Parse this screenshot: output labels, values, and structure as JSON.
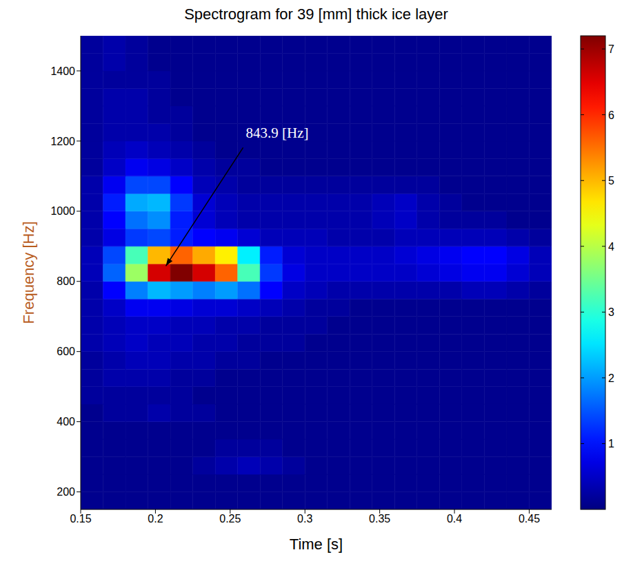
{
  "chart_data": {
    "type": "heatmap",
    "title": "Spectrogram for 39 [mm] thick ice layer",
    "x_label": "Time  [s]",
    "y_label": "Frequency  [Hz]",
    "xlim": [
      0.15,
      0.465
    ],
    "xticks": [
      0.15,
      0.2,
      0.25,
      0.3,
      0.35,
      0.4,
      0.45
    ],
    "ylim": [
      150,
      1500
    ],
    "yticks": [
      200,
      400,
      600,
      800,
      1000,
      1200,
      1400
    ],
    "heatmap": {
      "x_edges": [
        0.15,
        0.165,
        0.18,
        0.195,
        0.21,
        0.225,
        0.24,
        0.255,
        0.27,
        0.285,
        0.3,
        0.315,
        0.33,
        0.345,
        0.36,
        0.375,
        0.39,
        0.405,
        0.42,
        0.435,
        0.45,
        0.465
      ],
      "y_edges": [
        150,
        200,
        250,
        300,
        350,
        400,
        450,
        500,
        550,
        600,
        650,
        700,
        750,
        800,
        850,
        900,
        950,
        1000,
        1050,
        1100,
        1150,
        1200,
        1250,
        1300,
        1350,
        1400,
        1450,
        1500
      ],
      "cells": [
        [
          0.1,
          0.1,
          0.1,
          0.1,
          0.1,
          0.1,
          0.1,
          0.1,
          0.1,
          0.1,
          0.1,
          0.1,
          0.1,
          0.1,
          0.1,
          0.1,
          0.1,
          0.1,
          0.1,
          0.1,
          0.1
        ],
        [
          0.1,
          0.1,
          0.1,
          0.1,
          0.1,
          0.1,
          0.1,
          0.1,
          0.1,
          0.1,
          0.1,
          0.1,
          0.1,
          0.1,
          0.1,
          0.1,
          0.1,
          0.1,
          0.1,
          0.1,
          0.1
        ],
        [
          0.1,
          0.1,
          0.1,
          0.1,
          0.1,
          0.2,
          0.3,
          0.4,
          0.3,
          0.2,
          0.1,
          0.1,
          0.1,
          0.1,
          0.1,
          0.1,
          0.1,
          0.1,
          0.1,
          0.1,
          0.1
        ],
        [
          0.1,
          0.1,
          0.1,
          0.1,
          0.1,
          0.1,
          0.2,
          0.2,
          0.2,
          0.1,
          0.1,
          0.1,
          0.1,
          0.1,
          0.1,
          0.1,
          0.1,
          0.1,
          0.1,
          0.1,
          0.1
        ],
        [
          0.1,
          0.1,
          0.1,
          0.1,
          0.1,
          0.1,
          0.1,
          0.1,
          0.1,
          0.1,
          0.1,
          0.1,
          0.1,
          0.1,
          0.1,
          0.1,
          0.1,
          0.1,
          0.1,
          0.1,
          0.1
        ],
        [
          0.1,
          0.2,
          0.2,
          0.3,
          0.2,
          0.2,
          0.1,
          0.1,
          0.1,
          0.1,
          0.1,
          0.1,
          0.1,
          0.1,
          0.1,
          0.1,
          0.1,
          0.1,
          0.1,
          0.1,
          0.1
        ],
        [
          0.2,
          0.2,
          0.2,
          0.2,
          0.2,
          0.1,
          0.1,
          0.1,
          0.1,
          0.1,
          0.1,
          0.1,
          0.1,
          0.1,
          0.1,
          0.1,
          0.1,
          0.1,
          0.1,
          0.1,
          0.1
        ],
        [
          0.2,
          0.3,
          0.3,
          0.3,
          0.2,
          0.2,
          0.1,
          0.1,
          0.1,
          0.1,
          0.1,
          0.1,
          0.1,
          0.1,
          0.1,
          0.1,
          0.1,
          0.1,
          0.1,
          0.1,
          0.1
        ],
        [
          0.2,
          0.3,
          0.4,
          0.4,
          0.3,
          0.3,
          0.2,
          0.2,
          0.1,
          0.1,
          0.1,
          0.1,
          0.1,
          0.1,
          0.1,
          0.1,
          0.1,
          0.1,
          0.1,
          0.1,
          0.1
        ],
        [
          0.3,
          0.4,
          0.5,
          0.4,
          0.4,
          0.3,
          0.3,
          0.2,
          0.2,
          0.2,
          0.1,
          0.1,
          0.1,
          0.1,
          0.1,
          0.1,
          0.1,
          0.1,
          0.1,
          0.1,
          0.1
        ],
        [
          0.3,
          0.4,
          0.5,
          0.5,
          0.4,
          0.4,
          0.3,
          0.3,
          0.2,
          0.2,
          0.2,
          0.1,
          0.1,
          0.1,
          0.1,
          0.1,
          0.1,
          0.1,
          0.1,
          0.1,
          0.1
        ],
        [
          0.3,
          0.5,
          0.8,
          0.8,
          0.7,
          0.6,
          0.6,
          0.5,
          0.4,
          0.3,
          0.2,
          0.2,
          0.1,
          0.1,
          0.1,
          0.1,
          0.1,
          0.1,
          0.1,
          0.1,
          0.1
        ],
        [
          0.3,
          0.9,
          1.8,
          2.2,
          2.0,
          1.8,
          2.0,
          1.7,
          0.9,
          0.5,
          0.4,
          0.3,
          0.3,
          0.3,
          0.3,
          0.3,
          0.3,
          0.4,
          0.4,
          0.3,
          0.2
        ],
        [
          0.4,
          1.6,
          3.8,
          6.6,
          7.2,
          6.6,
          5.6,
          3.2,
          1.3,
          0.7,
          0.5,
          0.5,
          0.5,
          0.5,
          0.5,
          0.6,
          0.7,
          0.8,
          0.8,
          0.6,
          0.4
        ],
        [
          0.4,
          1.4,
          3.2,
          5.0,
          5.6,
          5.1,
          4.6,
          2.6,
          1.1,
          0.6,
          0.5,
          0.5,
          0.5,
          0.5,
          0.6,
          0.7,
          0.8,
          0.9,
          0.9,
          0.7,
          0.4
        ],
        [
          0.3,
          0.7,
          1.3,
          1.4,
          1.1,
          0.9,
          0.8,
          0.6,
          0.4,
          0.4,
          0.4,
          0.3,
          0.3,
          0.3,
          0.4,
          0.4,
          0.4,
          0.4,
          0.4,
          0.3,
          0.2
        ],
        [
          0.3,
          0.9,
          1.7,
          1.9,
          1.1,
          0.6,
          0.4,
          0.3,
          0.3,
          0.3,
          0.3,
          0.3,
          0.3,
          0.4,
          0.5,
          0.3,
          0.2,
          0.2,
          0.2,
          0.1,
          0.1
        ],
        [
          0.3,
          1.1,
          2.1,
          2.2,
          1.3,
          0.6,
          0.4,
          0.3,
          0.3,
          0.3,
          0.3,
          0.3,
          0.3,
          0.4,
          0.5,
          0.3,
          0.2,
          0.1,
          0.1,
          0.1,
          0.1
        ],
        [
          0.3,
          0.8,
          1.4,
          1.4,
          0.9,
          0.4,
          0.3,
          0.2,
          0.2,
          0.2,
          0.2,
          0.2,
          0.2,
          0.2,
          0.2,
          0.2,
          0.1,
          0.1,
          0.1,
          0.1,
          0.1
        ],
        [
          0.2,
          0.5,
          0.8,
          0.7,
          0.5,
          0.3,
          0.2,
          0.2,
          0.1,
          0.1,
          0.1,
          0.1,
          0.1,
          0.1,
          0.1,
          0.1,
          0.1,
          0.1,
          0.1,
          0.1,
          0.1
        ],
        [
          0.2,
          0.4,
          0.5,
          0.4,
          0.3,
          0.2,
          0.1,
          0.1,
          0.1,
          0.1,
          0.1,
          0.1,
          0.1,
          0.1,
          0.1,
          0.1,
          0.1,
          0.1,
          0.1,
          0.1,
          0.1
        ],
        [
          0.2,
          0.3,
          0.3,
          0.3,
          0.2,
          0.1,
          0.1,
          0.1,
          0.1,
          0.1,
          0.1,
          0.1,
          0.1,
          0.1,
          0.1,
          0.1,
          0.1,
          0.1,
          0.1,
          0.1,
          0.1
        ],
        [
          0.2,
          0.3,
          0.3,
          0.2,
          0.2,
          0.1,
          0.1,
          0.1,
          0.1,
          0.1,
          0.1,
          0.1,
          0.1,
          0.1,
          0.1,
          0.1,
          0.1,
          0.1,
          0.1,
          0.1,
          0.1
        ],
        [
          0.2,
          0.3,
          0.3,
          0.2,
          0.1,
          0.1,
          0.1,
          0.1,
          0.1,
          0.1,
          0.1,
          0.1,
          0.1,
          0.1,
          0.1,
          0.1,
          0.1,
          0.1,
          0.1,
          0.1,
          0.1
        ],
        [
          0.2,
          0.2,
          0.2,
          0.2,
          0.1,
          0.1,
          0.1,
          0.1,
          0.1,
          0.1,
          0.1,
          0.1,
          0.1,
          0.1,
          0.1,
          0.1,
          0.1,
          0.1,
          0.1,
          0.1,
          0.1
        ],
        [
          0.2,
          0.3,
          0.2,
          0.1,
          0.1,
          0.1,
          0.1,
          0.1,
          0.1,
          0.1,
          0.1,
          0.1,
          0.1,
          0.1,
          0.1,
          0.1,
          0.1,
          0.1,
          0.1,
          0.1,
          0.1
        ],
        [
          0.2,
          0.3,
          0.2,
          0.1,
          0.1,
          0.1,
          0.1,
          0.1,
          0.1,
          0.1,
          0.1,
          0.1,
          0.1,
          0.1,
          0.1,
          0.1,
          0.1,
          0.1,
          0.1,
          0.1,
          0.1
        ]
      ]
    },
    "color_bar": {
      "range": [
        0,
        7.2
      ],
      "ticks": [
        1,
        2,
        3,
        4,
        5,
        6,
        7
      ]
    },
    "annotations": [
      {
        "text": "843.9 [Hz]",
        "x": 0.207,
        "y": 843.9
      }
    ]
  }
}
